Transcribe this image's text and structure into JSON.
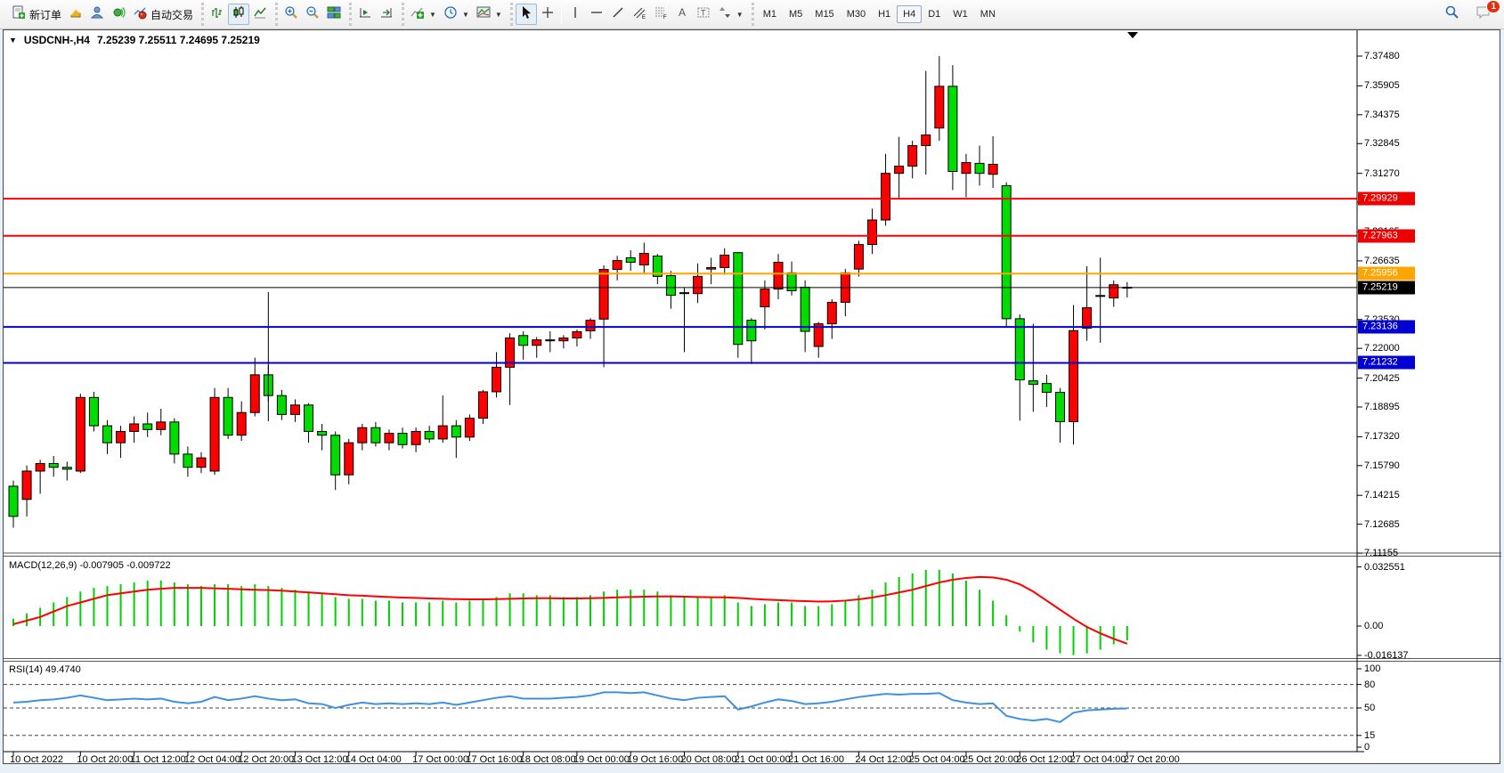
{
  "toolbar": {
    "new_order_label": "新订单",
    "autotrading_label": "自动交易",
    "icons": [
      "new-order-icon",
      "market-watch-icon",
      "navigator-icon",
      "terminal-icon",
      "autotrading-icon",
      "bar-chart-icon",
      "candlestick-icon",
      "line-chart-icon",
      "zoom-in-icon",
      "zoom-out-icon",
      "tile-windows-icon",
      "chart-shift-icon",
      "auto-scroll-icon",
      "indicators-icon",
      "periods-icon",
      "templates-icon",
      "cursor-icon",
      "crosshair-icon",
      "vertical-line-icon",
      "horizontal-line-icon",
      "trendline-icon",
      "channel-icon",
      "fibonacci-icon",
      "text-icon",
      "label-icon",
      "arrows-icon",
      "search-icon",
      "chat-icon"
    ],
    "timeframes": [
      "M1",
      "M5",
      "M15",
      "M30",
      "H1",
      "H4",
      "D1",
      "W1",
      "MN"
    ],
    "active_timeframe": "H4",
    "notification_count": "1"
  },
  "chart": {
    "title_symbol": "USDCNH-,H4",
    "title_ohlc": "7.25239 7.25511 7.24695 7.25219",
    "macd_label": "MACD(12,26,9) -0.007905 -0.009722",
    "rsi_label": "RSI(14) 49.4740"
  },
  "chart_data": {
    "type": "candlestick",
    "symbol": "USDCNH-",
    "timeframe": "H4",
    "last_ohlc": {
      "open": "7.25239",
      "high": "7.25511",
      "low": "7.24695",
      "close": "7.25219"
    },
    "colors": {
      "up": "#FF0000",
      "down": "#00DC00",
      "wick": "#000000",
      "macd_hist": "#00D200",
      "macd_signal": "#FF0000",
      "rsi_line": "#4090E0",
      "hline_red": "#FF0000",
      "hline_orange": "#FFA500",
      "hline_blue": "#0000CC",
      "price_line": "#000000",
      "badge_red": "#EE0000",
      "badge_orange": "#FFA500",
      "badge_blue": "#0000D0",
      "badge_black": "#000000"
    },
    "candles": [
      [
        7.147,
        7.15,
        7.125,
        7.131
      ],
      [
        7.14,
        7.158,
        7.131,
        7.155
      ],
      [
        7.155,
        7.161,
        7.143,
        7.159
      ],
      [
        7.159,
        7.163,
        7.152,
        7.157
      ],
      [
        7.157,
        7.16,
        7.15,
        7.156
      ],
      [
        7.155,
        7.196,
        7.154,
        7.194
      ],
      [
        7.194,
        7.197,
        7.176,
        7.179
      ],
      [
        7.179,
        7.182,
        7.164,
        7.17
      ],
      [
        7.17,
        7.179,
        7.162,
        7.176
      ],
      [
        7.176,
        7.184,
        7.17,
        7.18
      ],
      [
        7.18,
        7.186,
        7.173,
        7.177
      ],
      [
        7.177,
        7.188,
        7.174,
        7.181
      ],
      [
        7.181,
        7.183,
        7.159,
        7.164
      ],
      [
        7.164,
        7.168,
        7.152,
        7.157
      ],
      [
        7.157,
        7.165,
        7.154,
        7.162
      ],
      [
        7.155,
        7.199,
        7.153,
        7.194
      ],
      [
        7.194,
        7.199,
        7.172,
        7.174
      ],
      [
        7.174,
        7.192,
        7.171,
        7.186
      ],
      [
        7.186,
        7.215,
        7.184,
        7.206
      ],
      [
        7.206,
        7.211,
        7.192,
        7.195
      ],
      [
        7.195,
        7.198,
        7.182,
        7.185
      ],
      [
        7.185,
        7.193,
        7.181,
        7.19
      ],
      [
        7.19,
        7.191,
        7.17,
        7.176
      ],
      [
        7.176,
        7.18,
        7.166,
        7.174
      ],
      [
        7.174,
        7.176,
        7.145,
        7.153
      ],
      [
        7.153,
        7.172,
        7.148,
        7.17
      ],
      [
        7.17,
        7.18,
        7.166,
        7.178
      ],
      [
        7.178,
        7.181,
        7.168,
        7.17
      ],
      [
        7.17,
        7.177,
        7.166,
        7.175
      ],
      [
        7.175,
        7.178,
        7.167,
        7.169
      ],
      [
        7.169,
        7.178,
        7.165,
        7.176
      ],
      [
        7.176,
        7.179,
        7.17,
        7.172
      ],
      [
        7.172,
        7.195,
        7.17,
        7.179
      ],
      [
        7.179,
        7.182,
        7.162,
        7.173
      ],
      [
        7.173,
        7.185,
        7.171,
        7.183
      ],
      [
        7.183,
        7.198,
        7.18,
        7.197
      ],
      [
        7.197,
        7.218,
        7.194,
        7.21
      ],
      [
        7.21,
        7.228,
        7.19,
        7.2255
      ],
      [
        7.2268,
        7.229,
        7.214,
        7.2216
      ],
      [
        7.2216,
        7.226,
        7.215,
        7.2245
      ],
      [
        7.2245,
        7.229,
        7.218,
        7.224
      ],
      [
        7.224,
        7.227,
        7.22,
        7.2255
      ],
      [
        7.2255,
        7.23,
        7.221,
        7.2288
      ],
      [
        7.2293,
        7.236,
        7.225,
        7.2349
      ],
      [
        7.2355,
        7.264,
        7.21,
        7.2618
      ],
      [
        7.2618,
        7.269,
        7.256,
        7.2665
      ],
      [
        7.268,
        7.272,
        7.261,
        7.2656
      ],
      [
        7.2642,
        7.276,
        7.26,
        7.2703
      ],
      [
        7.2689,
        7.27,
        7.254,
        7.2581
      ],
      [
        7.2585,
        7.261,
        7.241,
        7.2481
      ],
      [
        7.2495,
        7.252,
        7.218,
        7.249
      ],
      [
        7.249,
        7.265,
        7.244,
        7.2581
      ],
      [
        7.262,
        7.268,
        7.254,
        7.2628
      ],
      [
        7.2628,
        7.273,
        7.259,
        7.2694
      ],
      [
        7.2707,
        7.271,
        7.215,
        7.2221
      ],
      [
        7.2349,
        7.236,
        7.2117,
        7.224
      ],
      [
        7.242,
        7.256,
        7.23,
        7.2514
      ],
      [
        7.2514,
        7.27,
        7.246,
        7.2656
      ],
      [
        7.26,
        7.266,
        7.248,
        7.2505
      ],
      [
        7.2524,
        7.256,
        7.218,
        7.229
      ],
      [
        7.221,
        7.234,
        7.215,
        7.233
      ],
      [
        7.233,
        7.246,
        7.225,
        7.2444
      ],
      [
        7.2444,
        7.262,
        7.237,
        7.26
      ],
      [
        7.262,
        7.277,
        7.258,
        7.275
      ],
      [
        7.275,
        7.294,
        7.27,
        7.288
      ],
      [
        7.288,
        7.323,
        7.285,
        7.3127
      ],
      [
        7.3127,
        7.332,
        7.2996,
        7.3165
      ],
      [
        7.3165,
        7.33,
        7.31,
        7.3274
      ],
      [
        7.3274,
        7.367,
        7.312,
        7.333
      ],
      [
        7.3367,
        7.3748,
        7.33,
        7.3588
      ],
      [
        7.3588,
        7.37,
        7.3038,
        7.3137
      ],
      [
        7.3127,
        7.323,
        7.3,
        7.3184
      ],
      [
        7.318,
        7.3274,
        7.3062,
        7.3127
      ],
      [
        7.3122,
        7.3324,
        7.305,
        7.3175
      ],
      [
        7.3062,
        7.308,
        7.2315,
        7.2357
      ],
      [
        7.2357,
        7.238,
        7.1817,
        7.2033
      ],
      [
        7.2028,
        7.233,
        7.1864,
        7.2009
      ],
      [
        7.2014,
        7.206,
        7.189,
        7.1967
      ],
      [
        7.1967,
        7.199,
        7.17,
        7.1812
      ],
      [
        7.1812,
        7.2429,
        7.169,
        7.2294
      ],
      [
        7.2307,
        7.2635,
        7.224,
        7.2415
      ],
      [
        7.248,
        7.268,
        7.223,
        7.2476
      ],
      [
        7.2467,
        7.256,
        7.242,
        7.2537
      ],
      [
        7.25239,
        7.25511,
        7.24695,
        7.25219
      ]
    ],
    "price_axis": {
      "ticks": [
        "7.37480",
        "7.35905",
        "7.34375",
        "7.32845",
        "7.31270",
        "7.29740",
        "7.28165",
        "7.26635",
        "7.23530",
        "7.22000",
        "7.20425",
        "7.18895",
        "7.17320",
        "7.15790",
        "7.14215",
        "7.12685",
        "7.11155"
      ],
      "ylim": [
        7.1125,
        7.3885
      ]
    },
    "hlines": [
      {
        "price": 7.29929,
        "label": "7.29929",
        "color": "red"
      },
      {
        "price": 7.27963,
        "label": "7.27963",
        "color": "red"
      },
      {
        "price": 7.25956,
        "label": "7.25956",
        "color": "orange"
      },
      {
        "price": 7.25219,
        "label": "7.25219",
        "color": "black",
        "current": true
      },
      {
        "price": 7.23136,
        "label": "7.23136",
        "color": "blue"
      },
      {
        "price": 7.21232,
        "label": "7.21232",
        "color": "blue"
      }
    ],
    "time_axis": {
      "labels": [
        {
          "text": "10 Oct 2022",
          "candle": 0
        },
        {
          "text": "10 Oct 20:00",
          "candle": 5
        },
        {
          "text": "11 Oct 12:00",
          "candle": 9
        },
        {
          "text": "12 Oct 04:00",
          "candle": 13
        },
        {
          "text": "12 Oct 20:00",
          "candle": 17
        },
        {
          "text": "13 Oct 12:00",
          "candle": 21
        },
        {
          "text": "14 Oct 04:00",
          "candle": 25
        },
        {
          "text": "17 Oct 00:00",
          "candle": 30
        },
        {
          "text": "17 Oct 16:00",
          "candle": 34
        },
        {
          "text": "18 Oct 08:00",
          "candle": 38
        },
        {
          "text": "19 Oct 00:00",
          "candle": 42
        },
        {
          "text": "19 Oct 16:00",
          "candle": 46
        },
        {
          "text": "20 Oct 08:00",
          "candle": 50
        },
        {
          "text": "21 Oct 00:00",
          "candle": 54
        },
        {
          "text": "21 Oct 16:00",
          "candle": 58
        },
        {
          "text": "24 Oct 12:00",
          "candle": 63
        },
        {
          "text": "25 Oct 04:00",
          "candle": 67
        },
        {
          "text": "25 Oct 20:00",
          "candle": 71
        },
        {
          "text": "26 Oct 12:00",
          "candle": 75
        },
        {
          "text": "27 Oct 04:00",
          "candle": 79
        },
        {
          "text": "27 Oct 20:00",
          "candle": 83
        }
      ]
    },
    "macd": {
      "name": "MACD(12,26,9)",
      "value_main": "-0.007905",
      "value_signal": "-0.009722",
      "axis_labels": [
        "0.032551",
        "0.00",
        "-0.016137"
      ],
      "histogram": [
        0.004,
        0.007,
        0.01,
        0.013,
        0.016,
        0.019,
        0.021,
        0.022,
        0.023,
        0.024,
        0.025,
        0.025,
        0.024,
        0.023,
        0.022,
        0.023,
        0.023,
        0.022,
        0.023,
        0.022,
        0.021,
        0.02,
        0.019,
        0.018,
        0.016,
        0.015,
        0.015,
        0.014,
        0.014,
        0.013,
        0.013,
        0.013,
        0.014,
        0.013,
        0.014,
        0.015,
        0.016,
        0.018,
        0.018,
        0.017,
        0.017,
        0.016,
        0.016,
        0.017,
        0.019,
        0.02,
        0.02,
        0.02,
        0.019,
        0.017,
        0.016,
        0.016,
        0.016,
        0.017,
        0.013,
        0.011,
        0.012,
        0.013,
        0.013,
        0.011,
        0.011,
        0.012,
        0.014,
        0.017,
        0.02,
        0.024,
        0.027,
        0.029,
        0.031,
        0.031,
        0.029,
        0.025,
        0.02,
        0.014,
        0.006,
        -0.003,
        -0.009,
        -0.013,
        -0.015,
        -0.016,
        -0.015,
        -0.013,
        -0.01,
        -0.0079
      ],
      "signal": [
        0.001,
        0.003,
        0.005,
        0.008,
        0.011,
        0.013,
        0.015,
        0.017,
        0.018,
        0.019,
        0.02,
        0.0205,
        0.021,
        0.021,
        0.021,
        0.0208,
        0.0205,
        0.0202,
        0.02,
        0.0198,
        0.0195,
        0.019,
        0.0185,
        0.018,
        0.0175,
        0.017,
        0.0167,
        0.0163,
        0.016,
        0.0157,
        0.0155,
        0.0152,
        0.015,
        0.0148,
        0.0147,
        0.0147,
        0.0148,
        0.015,
        0.0152,
        0.0153,
        0.0153,
        0.0152,
        0.0152,
        0.0153,
        0.0155,
        0.0158,
        0.016,
        0.0162,
        0.0163,
        0.0163,
        0.0162,
        0.016,
        0.0159,
        0.0158,
        0.0155,
        0.015,
        0.0146,
        0.0143,
        0.014,
        0.0137,
        0.0135,
        0.0136,
        0.014,
        0.0147,
        0.0157,
        0.017,
        0.0185,
        0.02,
        0.022,
        0.024,
        0.0255,
        0.0265,
        0.027,
        0.0268,
        0.0255,
        0.023,
        0.019,
        0.014,
        0.009,
        0.004,
        -0.0005,
        -0.004,
        -0.007,
        -0.0097
      ]
    },
    "rsi": {
      "name": "RSI(14)",
      "value": "49.4740",
      "levels": [
        80,
        50,
        15
      ],
      "axis_labels": [
        "100",
        "80",
        "50",
        "15",
        "0"
      ],
      "values": [
        57,
        58,
        60,
        61,
        63,
        66,
        63,
        60,
        61,
        62,
        61,
        62,
        58,
        56,
        58,
        64,
        60,
        62,
        65,
        62,
        60,
        61,
        56,
        55,
        50,
        54,
        57,
        55,
        56,
        55,
        56,
        55,
        57,
        54,
        57,
        60,
        63,
        65,
        62,
        62,
        62,
        63,
        64,
        66,
        70,
        70,
        69,
        70,
        66,
        62,
        60,
        63,
        64,
        65,
        48,
        52,
        57,
        61,
        59,
        55,
        56,
        58,
        61,
        64,
        66,
        68,
        67,
        68,
        68,
        69,
        60,
        57,
        55,
        56,
        40,
        36,
        34,
        36,
        32,
        44,
        47,
        48,
        49,
        49.474
      ]
    },
    "vline": {
      "candle": 19
    }
  }
}
